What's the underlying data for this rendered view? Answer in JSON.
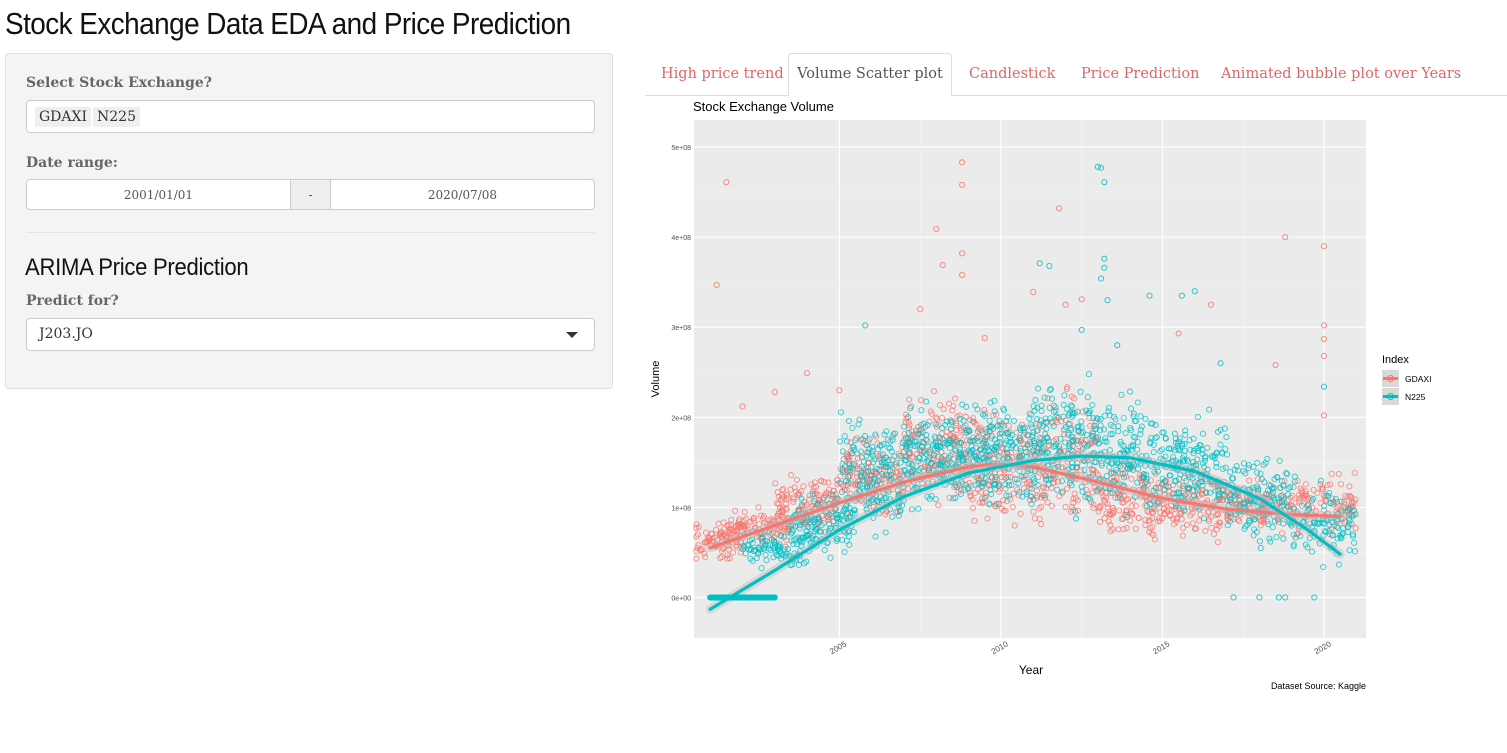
{
  "app": {
    "title": "Stock Exchange Data EDA and Price Prediction"
  },
  "sidebar": {
    "exchange_label": "Select Stock Exchange?",
    "exchanges": [
      "GDAXI",
      "N225"
    ],
    "date_label": "Date range:",
    "date_start": "2001/01/01",
    "date_sep": "-",
    "date_end": "2020/07/08",
    "arima_title": "ARIMA Price Prediction",
    "predict_label": "Predict for?",
    "predict_value": "J203.JO"
  },
  "tabs": [
    {
      "label": "High price trend",
      "active": false
    },
    {
      "label": "Volume Scatter plot",
      "active": true
    },
    {
      "label": "Candlestick",
      "active": false
    },
    {
      "label": "Price Prediction",
      "active": false
    },
    {
      "label": "Animated bubble plot over Years",
      "active": false
    }
  ],
  "colors": {
    "gdaxi": "#F8766D",
    "n225": "#00BFC4",
    "panel": "#EBEBEB",
    "accent": "#e06666"
  },
  "chart_data": {
    "type": "scatter",
    "title": "Stock Exchange Volume",
    "xlabel": "Year",
    "ylabel": "Volume",
    "caption": "Dataset Source: Kaggle",
    "xlim": [
      2000.5,
      2021.3
    ],
    "ylim": [
      -45000000.0,
      530000000.0
    ],
    "x_ticks": [
      {
        "value": 2005,
        "label": "2005"
      },
      {
        "value": 2010,
        "label": "2010"
      },
      {
        "value": 2015,
        "label": "2015"
      },
      {
        "value": 2020,
        "label": "2020"
      }
    ],
    "y_ticks": [
      {
        "value": 0,
        "label": "0e+00"
      },
      {
        "value": 100000000,
        "label": "1e+08"
      },
      {
        "value": 200000000,
        "label": "2e+08"
      },
      {
        "value": 300000000,
        "label": "3e+08"
      },
      {
        "value": 400000000,
        "label": "4e+08"
      },
      {
        "value": 500000000,
        "label": "5e+08"
      }
    ],
    "legend": {
      "title": "Index",
      "position": "right",
      "entries": [
        "GDAXI",
        "N225"
      ]
    },
    "series": [
      {
        "name": "GDAXI",
        "color": "#F8766D",
        "trend": [
          [
            2001,
            55000000.0
          ],
          [
            2003,
            80000000.0
          ],
          [
            2005,
            105000000.0
          ],
          [
            2007,
            128000000.0
          ],
          [
            2009,
            145000000.0
          ],
          [
            2010,
            148000000.0
          ],
          [
            2011,
            145000000.0
          ],
          [
            2013,
            128000000.0
          ],
          [
            2015,
            110000000.0
          ],
          [
            2017,
            98000000.0
          ],
          [
            2019,
            92000000.0
          ],
          [
            2020.5,
            90000000.0
          ]
        ],
        "highlights": [
          [
            2001.2,
            347000000.0
          ],
          [
            2001.5,
            461000000.0
          ],
          [
            2002,
            212000000.0
          ],
          [
            2003,
            228000000.0
          ],
          [
            2004,
            249000000.0
          ],
          [
            2005,
            230000000.0
          ],
          [
            2007.5,
            320000000.0
          ],
          [
            2008,
            409000000.0
          ],
          [
            2008.2,
            369000000.0
          ],
          [
            2008.8,
            483000000.0
          ],
          [
            2008.8,
            458000000.0
          ],
          [
            2008.8,
            382000000.0
          ],
          [
            2008.8,
            358000000.0
          ],
          [
            2009.5,
            288000000.0
          ],
          [
            2011,
            339000000.0
          ],
          [
            2011.8,
            432000000.0
          ],
          [
            2012,
            325000000.0
          ],
          [
            2012.5,
            331000000.0
          ],
          [
            2015.5,
            293000000.0
          ],
          [
            2016.5,
            325000000.0
          ],
          [
            2018.5,
            258000000.0
          ],
          [
            2018.8,
            400000000.0
          ],
          [
            2020,
            390000000.0
          ],
          [
            2020,
            302000000.0
          ],
          [
            2020,
            287000000.0
          ],
          [
            2020,
            268000000.0
          ],
          [
            2020,
            202000000.0
          ]
        ],
        "cloud": [
          [
            2001,
            45000000.0,
            80000000.0,
            35
          ],
          [
            2002.5,
            60000000.0,
            95000000.0,
            40
          ],
          [
            2004,
            80000000.0,
            130000000.0,
            45
          ],
          [
            2006,
            100000000.0,
            170000000.0,
            50
          ],
          [
            2008,
            110000000.0,
            210000000.0,
            55
          ],
          [
            2010,
            85000000.0,
            200000000.0,
            55
          ],
          [
            2012,
            90000000.0,
            210000000.0,
            55
          ],
          [
            2014,
            70000000.0,
            150000000.0,
            50
          ],
          [
            2016,
            70000000.0,
            140000000.0,
            45
          ],
          [
            2018,
            80000000.0,
            125000000.0,
            40
          ],
          [
            2020,
            75000000.0,
            130000000.0,
            35
          ]
        ]
      },
      {
        "name": "N225",
        "color": "#00BFC4",
        "trend": [
          [
            2001,
            -13000000.0
          ],
          [
            2003,
            30000000.0
          ],
          [
            2005,
            75000000.0
          ],
          [
            2007,
            112000000.0
          ],
          [
            2009,
            138000000.0
          ],
          [
            2011,
            152000000.0
          ],
          [
            2012.5,
            157000000.0
          ],
          [
            2014,
            155000000.0
          ],
          [
            2016,
            140000000.0
          ],
          [
            2018,
            110000000.0
          ],
          [
            2019.5,
            75000000.0
          ],
          [
            2020.5,
            48000000.0
          ]
        ],
        "zero_segment": [
          2001,
          2003
        ],
        "highlights": [
          [
            2005.8,
            302000000.0
          ],
          [
            2011.2,
            371000000.0
          ],
          [
            2011.5,
            368000000.0
          ],
          [
            2012.5,
            297000000.0
          ],
          [
            2013,
            478000000.0
          ],
          [
            2013.1,
            477000000.0
          ],
          [
            2013.2,
            461000000.0
          ],
          [
            2013.2,
            376000000.0
          ],
          [
            2013.2,
            366000000.0
          ],
          [
            2013.1,
            354000000.0
          ],
          [
            2013.3,
            330000000.0
          ],
          [
            2013.6,
            280000000.0
          ],
          [
            2014.6,
            335000000.0
          ],
          [
            2015.6,
            335000000.0
          ],
          [
            2016,
            340000000.0
          ],
          [
            2016.8,
            260000000.0
          ],
          [
            2020,
            234000000.0
          ],
          [
            2017.2,
            0
          ],
          [
            2018,
            0
          ],
          [
            2018.6,
            0
          ],
          [
            2018.8,
            0
          ],
          [
            2019.7,
            0
          ]
        ],
        "cloud": [
          [
            2003,
            35000000.0,
            70000000.0,
            30
          ],
          [
            2004.5,
            55000000.0,
            110000000.0,
            45
          ],
          [
            2006,
            80000000.0,
            190000000.0,
            55
          ],
          [
            2008,
            110000000.0,
            200000000.0,
            60
          ],
          [
            2010,
            110000000.0,
            210000000.0,
            60
          ],
          [
            2012,
            110000000.0,
            230000000.0,
            60
          ],
          [
            2014,
            105000000.0,
            210000000.0,
            55
          ],
          [
            2016,
            95000000.0,
            190000000.0,
            55
          ],
          [
            2018,
            70000000.0,
            150000000.0,
            45
          ],
          [
            2020,
            45000000.0,
            120000000.0,
            35
          ]
        ]
      }
    ]
  }
}
